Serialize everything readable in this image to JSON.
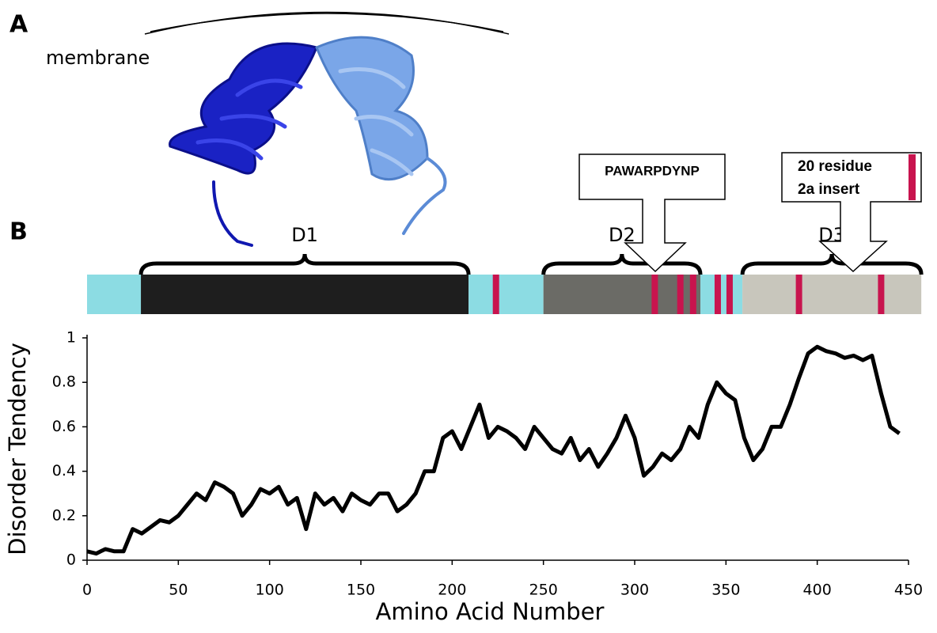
{
  "panel_a": {
    "label": "A",
    "membrane": "membrane"
  },
  "panel_b": {
    "label": "B"
  },
  "domain_map": {
    "length": 457,
    "segments": [
      {
        "start": 0,
        "end": 29.5,
        "color": "#8cdce3"
      },
      {
        "start": 29.5,
        "end": 209,
        "color": "#1e1e1e"
      },
      {
        "start": 209,
        "end": 250,
        "color": "#8cdce3"
      },
      {
        "start": 250,
        "end": 336,
        "color": "#6b6b66"
      },
      {
        "start": 336,
        "end": 359,
        "color": "#8cdce3"
      },
      {
        "start": 359,
        "end": 457,
        "color": "#c8c6bc"
      }
    ],
    "marker_color": "#c8144e",
    "markers": [
      224,
      311,
      325,
      332,
      345.5,
      352,
      390,
      435
    ],
    "domains": [
      {
        "name": "D1",
        "start": 29.5,
        "end": 209
      },
      {
        "name": "D2",
        "start": 250,
        "end": 336
      },
      {
        "name": "D3",
        "start": 359,
        "end": 457
      }
    ],
    "callouts": [
      {
        "text": "PAWARPDYNP"
      },
      {
        "lines": [
          "20 residue",
          "2a insert"
        ]
      }
    ]
  },
  "chart_data": {
    "type": "line",
    "x_label": "Amino Acid Number",
    "y_label": "Disorder Tendency",
    "x": [
      0,
      5,
      10,
      15,
      20,
      25,
      30,
      35,
      40,
      45,
      50,
      55,
      60,
      65,
      70,
      75,
      80,
      85,
      90,
      95,
      100,
      105,
      110,
      115,
      120,
      125,
      130,
      135,
      140,
      145,
      150,
      155,
      160,
      165,
      170,
      175,
      180,
      185,
      190,
      195,
      200,
      205,
      210,
      215,
      220,
      225,
      230,
      235,
      240,
      245,
      250,
      255,
      260,
      265,
      270,
      275,
      280,
      285,
      290,
      295,
      300,
      305,
      310,
      315,
      320,
      325,
      330,
      335,
      340,
      345,
      350,
      355,
      360,
      365,
      370,
      375,
      380,
      385,
      390,
      395,
      400,
      405,
      410,
      415,
      420,
      425,
      430,
      435,
      440,
      445
    ],
    "values": [
      0.04,
      0.03,
      0.05,
      0.04,
      0.04,
      0.14,
      0.12,
      0.15,
      0.18,
      0.17,
      0.2,
      0.25,
      0.3,
      0.27,
      0.35,
      0.33,
      0.3,
      0.2,
      0.25,
      0.32,
      0.3,
      0.33,
      0.25,
      0.28,
      0.14,
      0.3,
      0.25,
      0.28,
      0.22,
      0.3,
      0.27,
      0.25,
      0.3,
      0.3,
      0.22,
      0.25,
      0.3,
      0.4,
      0.4,
      0.55,
      0.58,
      0.5,
      0.6,
      0.7,
      0.55,
      0.6,
      0.58,
      0.55,
      0.5,
      0.6,
      0.55,
      0.5,
      0.48,
      0.55,
      0.45,
      0.5,
      0.42,
      0.48,
      0.55,
      0.65,
      0.55,
      0.38,
      0.42,
      0.48,
      0.45,
      0.5,
      0.6,
      0.55,
      0.7,
      0.8,
      0.75,
      0.72,
      0.55,
      0.45,
      0.5,
      0.6,
      0.6,
      0.7,
      0.82,
      0.93,
      0.96,
      0.94,
      0.93,
      0.91,
      0.92,
      0.9,
      0.92,
      0.75,
      0.6,
      0.57
    ],
    "color": "#000000",
    "xlim": [
      0,
      450
    ],
    "ylim": [
      0,
      1
    ],
    "xticks": [
      0,
      50,
      100,
      150,
      200,
      250,
      300,
      350,
      400,
      450
    ],
    "yticks": [
      0,
      0.2,
      0.4,
      0.6,
      0.8,
      1
    ],
    "grid": false
  }
}
